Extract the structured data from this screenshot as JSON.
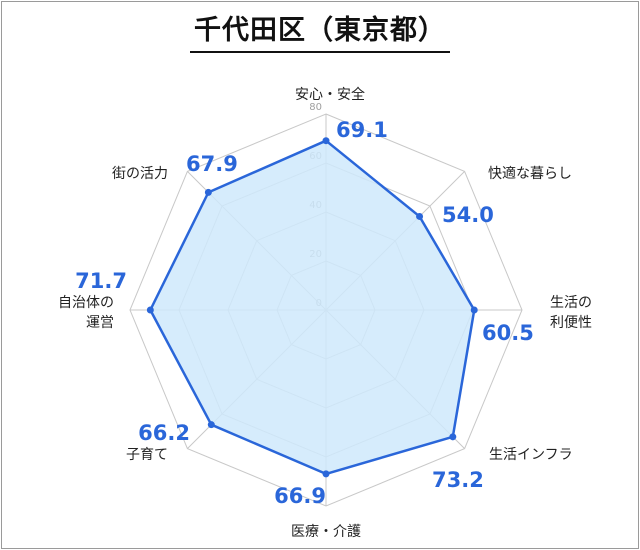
{
  "title": "千代田区（東京都）",
  "chart_data": {
    "type": "radar",
    "title": "千代田区（東京都）",
    "axes": [
      {
        "label_lines": [
          "安心・安全"
        ],
        "value": 69.1,
        "value_text": "69.1"
      },
      {
        "label_lines": [
          "快適な暮らし"
        ],
        "value": 54.0,
        "value_text": "54.0"
      },
      {
        "label_lines": [
          "生活の",
          "利便性"
        ],
        "value": 60.5,
        "value_text": "60.5"
      },
      {
        "label_lines": [
          "生活インフラ"
        ],
        "value": 73.2,
        "value_text": "73.2"
      },
      {
        "label_lines": [
          "医療・介護"
        ],
        "value": 66.9,
        "value_text": "66.9"
      },
      {
        "label_lines": [
          "子育て"
        ],
        "value": 66.2,
        "value_text": "66.2"
      },
      {
        "label_lines": [
          "自治体の",
          "運営"
        ],
        "value": 71.7,
        "value_text": "71.7"
      },
      {
        "label_lines": [
          "街の活力"
        ],
        "value": 67.9,
        "value_text": "67.9"
      }
    ],
    "rmin": 0,
    "rmax": 80,
    "ticks": [
      0,
      20,
      40,
      60,
      80
    ],
    "grid": true,
    "colors": {
      "line": "#2a66d9",
      "fill": "#cfe9fb",
      "grid": "#c8c8c8",
      "value_text": "#2a66d9"
    }
  }
}
